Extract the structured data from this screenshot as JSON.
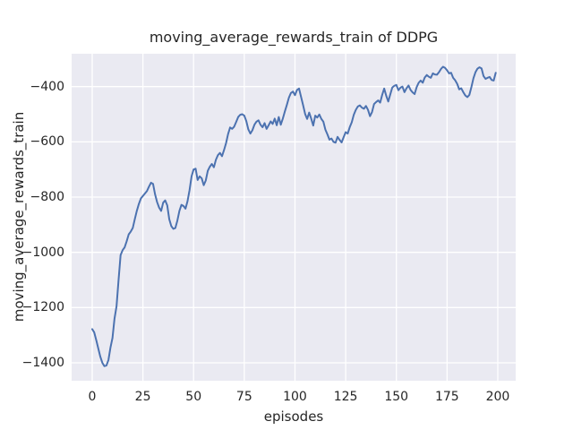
{
  "chart_data": {
    "type": "line",
    "title": "moving_average_rewards_train of DDPG",
    "xlabel": "episodes",
    "ylabel": "moving_average_rewards_train",
    "x_ticks": [
      0,
      25,
      50,
      75,
      100,
      125,
      150,
      175,
      200
    ],
    "y_ticks": [
      -400,
      -600,
      -800,
      -1000,
      -1200,
      -1400
    ],
    "xlim": [
      -10.15,
      208.85
    ],
    "ylim": [
      -1464.9,
      -281
    ],
    "grid": true,
    "legend": false,
    "style": {
      "axes_background": "#eaeaf2",
      "grid_color": "#ffffff",
      "line_color": "#4c72b0",
      "line_width": 2,
      "text_color": "#262626"
    },
    "series": [
      {
        "name": "moving_average_rewards_train",
        "color": "#4c72b0",
        "x_start": 0,
        "x_step": 1,
        "values": [
          -1278,
          -1290,
          -1318,
          -1348,
          -1378,
          -1400,
          -1412,
          -1410,
          -1390,
          -1345,
          -1310,
          -1240,
          -1195,
          -1100,
          -1010,
          -992,
          -982,
          -960,
          -935,
          -925,
          -912,
          -880,
          -850,
          -825,
          -805,
          -796,
          -787,
          -778,
          -762,
          -748,
          -752,
          -790,
          -818,
          -838,
          -850,
          -820,
          -812,
          -830,
          -880,
          -905,
          -915,
          -912,
          -885,
          -850,
          -828,
          -832,
          -842,
          -815,
          -775,
          -725,
          -700,
          -697,
          -738,
          -725,
          -732,
          -757,
          -740,
          -705,
          -690,
          -680,
          -692,
          -665,
          -648,
          -640,
          -652,
          -630,
          -605,
          -572,
          -548,
          -553,
          -545,
          -528,
          -510,
          -502,
          -500,
          -505,
          -525,
          -555,
          -570,
          -558,
          -538,
          -527,
          -522,
          -538,
          -547,
          -532,
          -553,
          -540,
          -526,
          -535,
          -516,
          -540,
          -510,
          -538,
          -516,
          -490,
          -466,
          -440,
          -423,
          -418,
          -431,
          -412,
          -407,
          -437,
          -467,
          -499,
          -517,
          -494,
          -516,
          -541,
          -505,
          -512,
          -501,
          -517,
          -527,
          -556,
          -573,
          -592,
          -588,
          -600,
          -603,
          -582,
          -593,
          -602,
          -583,
          -565,
          -570,
          -547,
          -529,
          -502,
          -484,
          -472,
          -468,
          -476,
          -480,
          -470,
          -484,
          -507,
          -492,
          -463,
          -456,
          -450,
          -458,
          -430,
          -407,
          -433,
          -454,
          -428,
          -403,
          -397,
          -394,
          -413,
          -404,
          -400,
          -420,
          -406,
          -396,
          -412,
          -421,
          -427,
          -402,
          -386,
          -378,
          -386,
          -367,
          -358,
          -364,
          -368,
          -352,
          -356,
          -357,
          -348,
          -336,
          -328,
          -332,
          -341,
          -352,
          -350,
          -368,
          -377,
          -390,
          -410,
          -406,
          -420,
          -432,
          -438,
          -430,
          -402,
          -370,
          -348,
          -335,
          -330,
          -334,
          -362,
          -372,
          -368,
          -365,
          -376,
          -378,
          -350
        ]
      }
    ]
  }
}
